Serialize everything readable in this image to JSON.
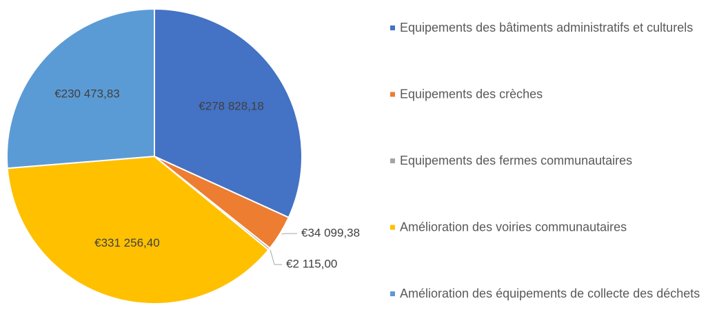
{
  "chart_data": {
    "type": "pie",
    "categories": [
      "Equipements des bâtiments administratifs et culturels",
      "Equipements des crèches",
      "Equipements des fermes communautaires",
      "Amélioration des voiries communautaires",
      "Amélioration des équipements de collecte des déchets"
    ],
    "values": [
      278828.18,
      34099.38,
      2115.0,
      331256.4,
      230473.83
    ],
    "value_labels": [
      "€278 828,18",
      "€34 099,38",
      "€2 115,00",
      "€331 256,40",
      "€230 473,83"
    ],
    "colors": [
      "#4472c4",
      "#ed7d31",
      "#a5a5a5",
      "#ffc000",
      "#5b9bd5"
    ],
    "legend": "right"
  }
}
